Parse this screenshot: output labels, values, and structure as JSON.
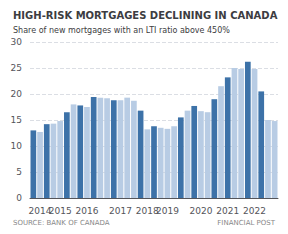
{
  "chart_data": {
    "type": "bar",
    "title": "HIGH-RISK MORTGAGES DECLINING IN CANADA",
    "subtitle": "Share of new mortgages with an LTI ratio above 450%",
    "annotations": [
      "SOURCE: BANK OF CANADA",
      "FINANCIAL POST"
    ],
    "categories": [
      null,
      "2014",
      null,
      null,
      "2015",
      null,
      null,
      null,
      "2016",
      null,
      null,
      null,
      null,
      "2017",
      null,
      null,
      null,
      "2018",
      null,
      null,
      "2019",
      null,
      null,
      null,
      null,
      "2020",
      null,
      null,
      null,
      "2021",
      null,
      null,
      null,
      "2022",
      null,
      null,
      null
    ],
    "values": [
      13.0,
      12.7,
      14.2,
      14.3,
      14.8,
      16.5,
      18.0,
      17.8,
      17.5,
      19.4,
      19.3,
      19.2,
      18.8,
      18.8,
      19.3,
      18.7,
      16.8,
      13.2,
      13.8,
      13.5,
      13.3,
      13.8,
      15.5,
      16.8,
      17.7,
      16.7,
      16.5,
      19.0,
      21.5,
      23.2,
      25.0,
      24.8,
      26.2,
      24.8,
      20.5,
      15.0,
      14.8
    ],
    "colors": [
      "#3d72a8",
      "#b8cce4",
      "#3d72a8",
      "#b8cce4",
      "#b8cce4",
      "#3d72a8",
      "#b8cce4",
      "#3d72a8",
      "#b8cce4",
      "#3d72a8",
      "#b8cce4",
      "#b8cce4",
      "#3d72a8",
      "#b8cce4",
      "#b8cce4",
      "#b8cce4",
      "#3d72a8",
      "#b8cce4",
      "#3d72a8",
      "#b8cce4",
      "#b8cce4",
      "#b8cce4",
      "#3d72a8",
      "#b8cce4",
      "#3d72a8",
      "#b8cce4",
      "#b8cce4",
      "#3d72a8",
      "#b8cce4",
      "#3d72a8",
      "#b8cce4",
      "#b8cce4",
      "#3d72a8",
      "#b8cce4",
      "#3d72a8",
      "#b8cce4",
      "#b8cce4"
    ],
    "ylim": [
      0,
      30
    ],
    "yticks": [
      0,
      5,
      10,
      15,
      20,
      25,
      30
    ],
    "grid": true
  }
}
